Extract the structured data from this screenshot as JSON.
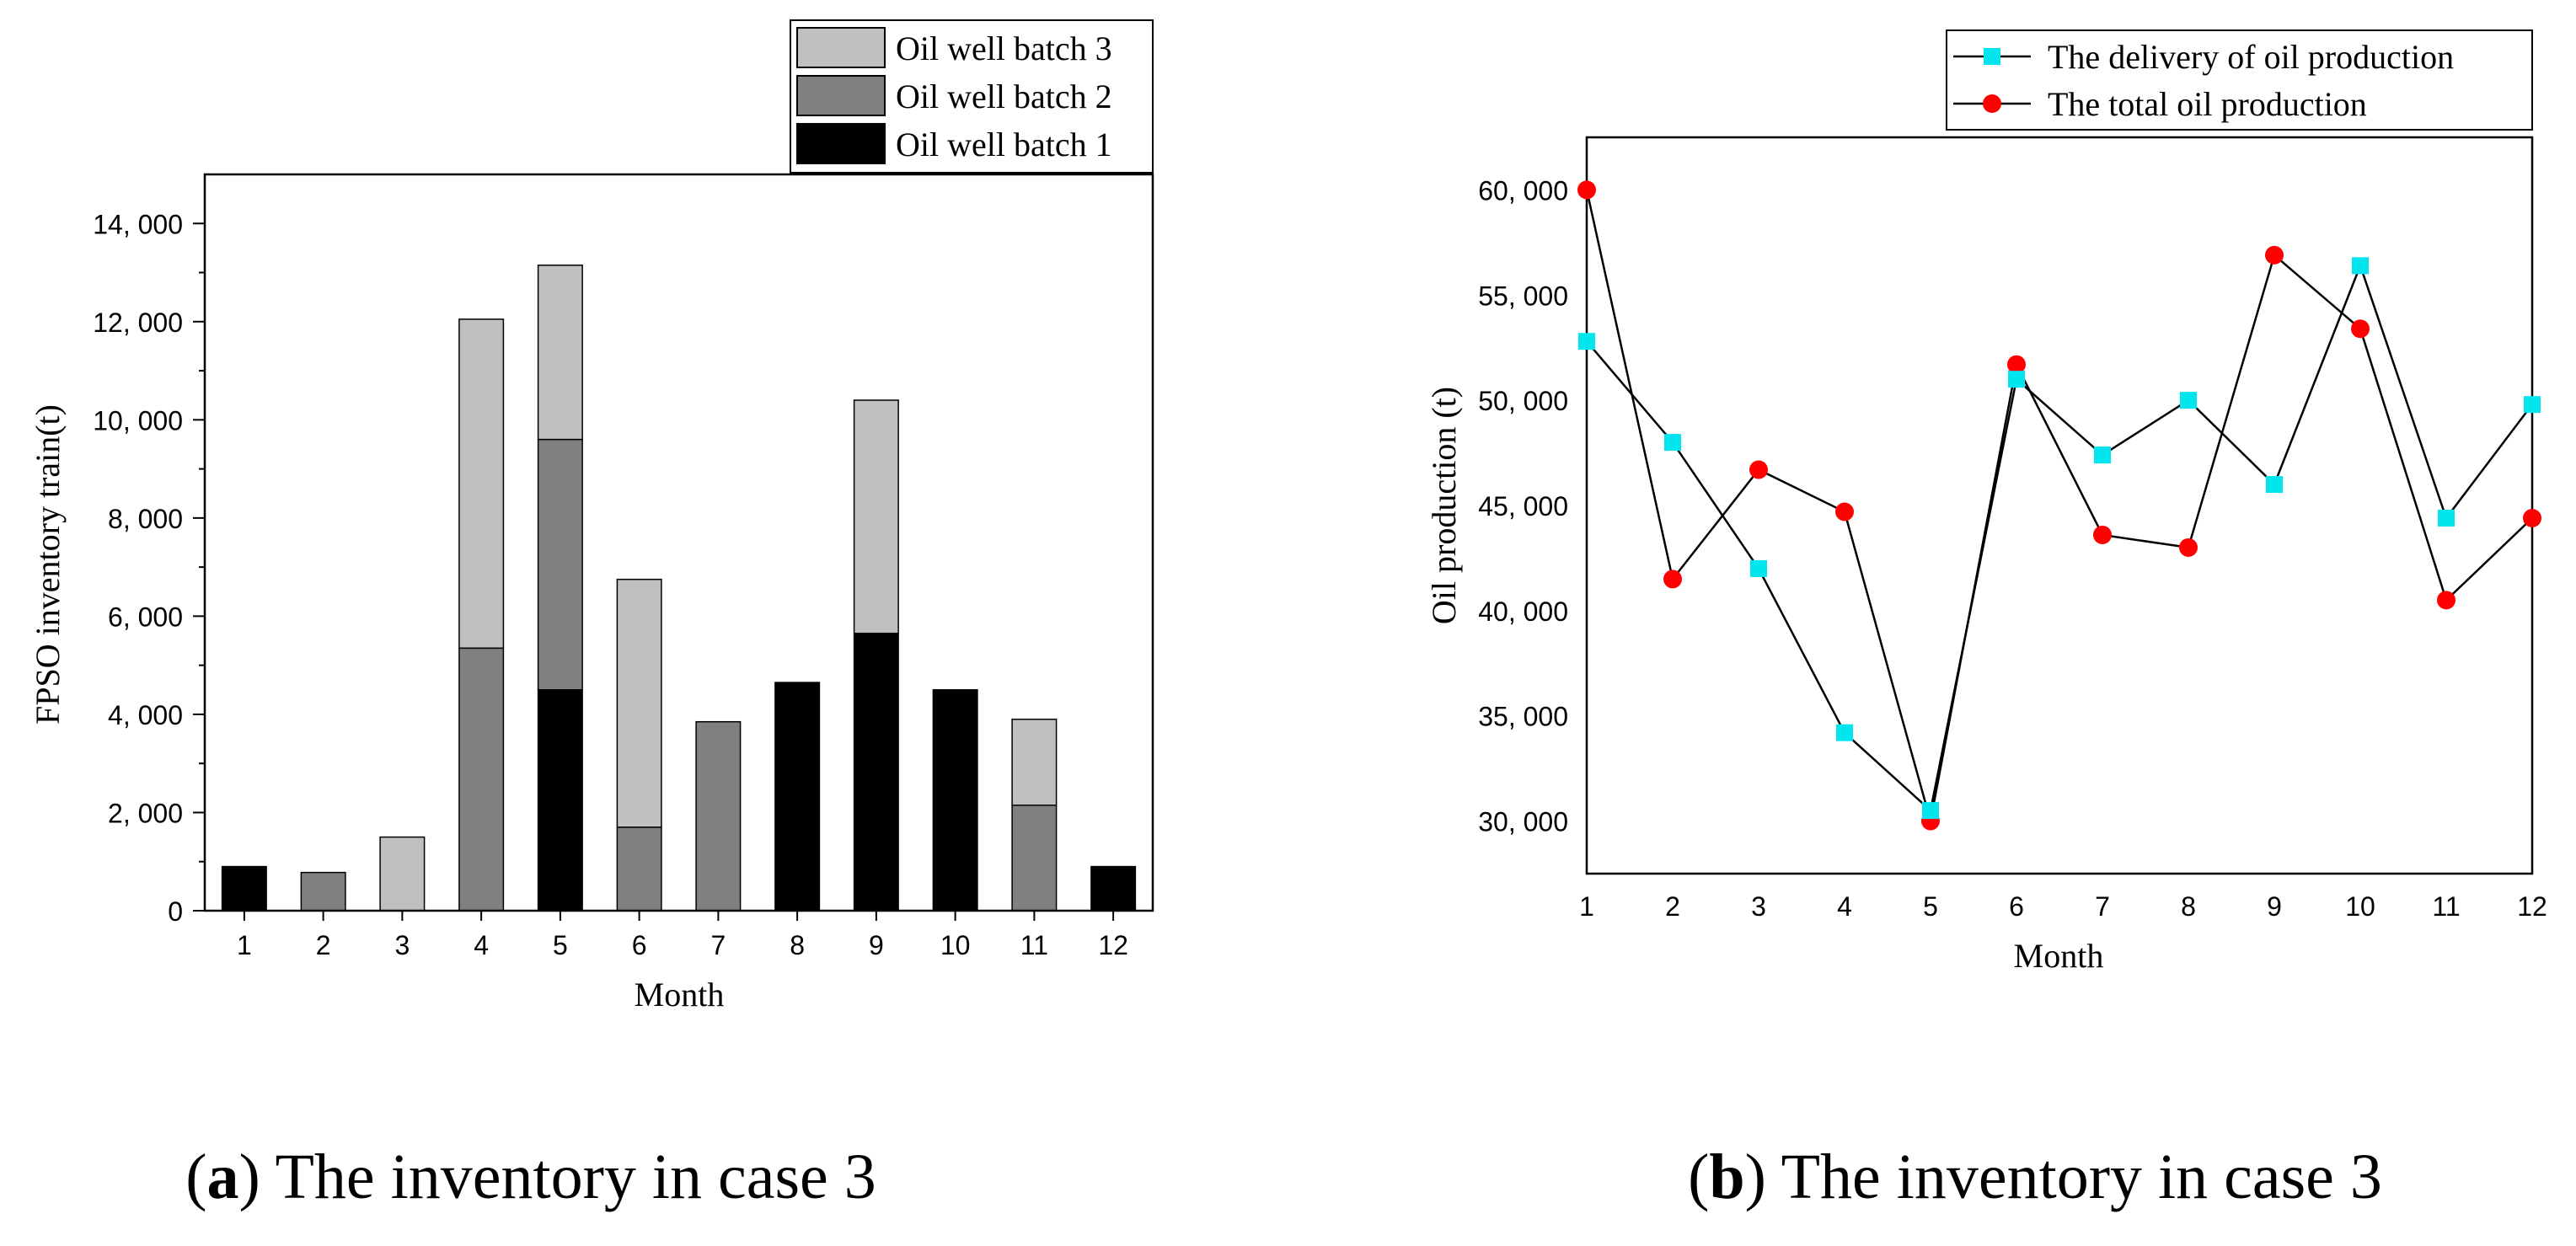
{
  "chart_data": [
    {
      "type": "bar",
      "stacked": true,
      "xlabel": "Month",
      "ylabel": "FPSO inventory train(t)",
      "categories": [
        "1",
        "2",
        "3",
        "4",
        "5",
        "6",
        "7",
        "8",
        "9",
        "10",
        "11",
        "12"
      ],
      "ylim": [
        0,
        15000
      ],
      "yticks": [
        0,
        2000,
        4000,
        6000,
        8000,
        10000,
        12000,
        14000
      ],
      "ytick_labels": [
        "0",
        "2, 000",
        "4, 000",
        "6, 000",
        "8, 000",
        "10, 000",
        "12, 000",
        "14, 000"
      ],
      "series": [
        {
          "name": "Oil well batch 1",
          "color": "#000000",
          "values": [
            900,
            0,
            0,
            0,
            4500,
            0,
            0,
            4650,
            5650,
            4500,
            0,
            900
          ]
        },
        {
          "name": "Oil well batch 2",
          "color": "#808080",
          "values": [
            0,
            780,
            0,
            5350,
            5100,
            1700,
            3850,
            0,
            0,
            0,
            2150,
            0
          ]
        },
        {
          "name": "Oil well batch 3",
          "color": "#c0c0c0",
          "values": [
            0,
            0,
            1500,
            6700,
            3550,
            5050,
            0,
            0,
            4750,
            0,
            1750,
            0
          ]
        }
      ],
      "legend_order": [
        "Oil well batch 3",
        "Oil well batch 2",
        "Oil well batch 1"
      ],
      "legend_position": "top-right",
      "caption_letter": "a",
      "caption_text": " The inventory in case 3"
    },
    {
      "type": "line",
      "xlabel": "Month",
      "ylabel": "Oil production (t)",
      "x": [
        1,
        2,
        3,
        4,
        5,
        6,
        7,
        8,
        9,
        10,
        11,
        12
      ],
      "xlim": [
        1,
        12
      ],
      "ylim": [
        27500,
        62500
      ],
      "yticks": [
        30000,
        35000,
        40000,
        45000,
        50000,
        55000,
        60000
      ],
      "ytick_labels": [
        "30, 000",
        "35, 000",
        "40, 000",
        "45, 000",
        "50, 000",
        "55, 000",
        "60, 000"
      ],
      "series": [
        {
          "name": "The delivery of oil production",
          "color": "#00e5ee",
          "marker": "square",
          "values": [
            52800,
            48000,
            42000,
            34200,
            30500,
            51000,
            47400,
            50000,
            46000,
            56400,
            44400,
            49800
          ]
        },
        {
          "name": "The total oil production",
          "color": "#ff0000",
          "marker": "circle",
          "values": [
            60000,
            41500,
            46700,
            44700,
            30000,
            51700,
            43600,
            43000,
            56900,
            53400,
            40500,
            44400
          ]
        }
      ],
      "legend_position": "top-right",
      "caption_letter": "b",
      "caption_text": " The inventory in case 3"
    }
  ]
}
